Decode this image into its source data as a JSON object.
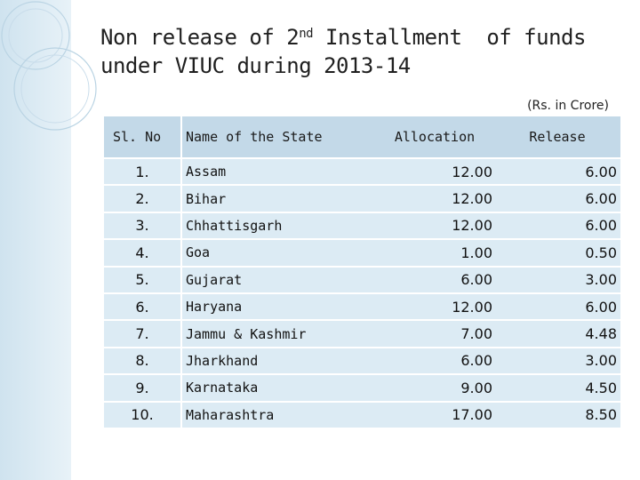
{
  "slide": {
    "title_line1_pre": "Non release of 2",
    "title_line1_sup": "nd",
    "title_line1_post": " Installment  of funds",
    "title_line2": "under VIUC during 2013-14",
    "units_note": "(Rs. in Crore)"
  },
  "table": {
    "headers": {
      "sl_no": "Sl. No",
      "state": "Name of the State",
      "allocation": "Allocation",
      "release": "Release"
    },
    "rows": [
      {
        "sl": "1.",
        "state": "Assam",
        "allocation": "12.00",
        "release": "6.00"
      },
      {
        "sl": "2.",
        "state": "Bihar",
        "allocation": "12.00",
        "release": "6.00"
      },
      {
        "sl": "3.",
        "state": "Chhattisgarh",
        "allocation": "12.00",
        "release": "6.00"
      },
      {
        "sl": "4.",
        "state": "Goa",
        "allocation": "1.00",
        "release": "0.50"
      },
      {
        "sl": "5.",
        "state": "Gujarat",
        "allocation": "6.00",
        "release": "3.00"
      },
      {
        "sl": "6.",
        "state": "Haryana",
        "allocation": "12.00",
        "release": "6.00"
      },
      {
        "sl": "7.",
        "state": "Jammu & Kashmir",
        "allocation": "7.00",
        "release": "4.48"
      },
      {
        "sl": "8.",
        "state": "Jharkhand",
        "allocation": "6.00",
        "release": "3.00"
      },
      {
        "sl": "9.",
        "state": "Karnataka",
        "allocation": "9.00",
        "release": "4.50"
      },
      {
        "sl": "10.",
        "state": "Maharashtra",
        "allocation": "17.00",
        "release": "8.50"
      }
    ]
  },
  "colors": {
    "header_bg": "#c3d9e8",
    "row_bg": "#dcebf4",
    "left_bar": "#cfe3ef"
  }
}
